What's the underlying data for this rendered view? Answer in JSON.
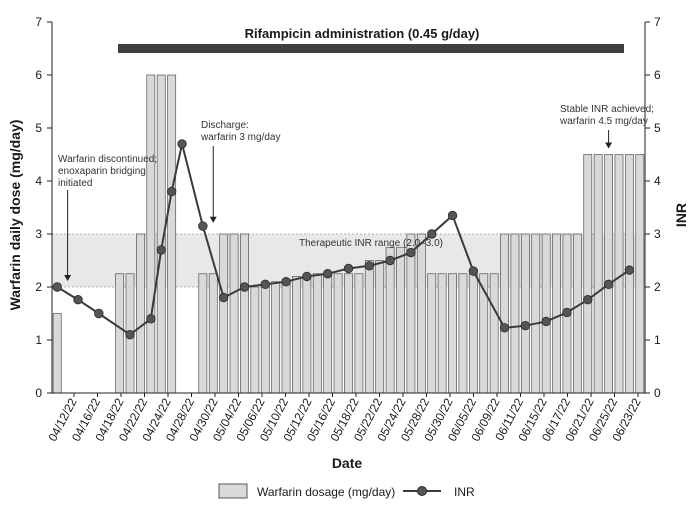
{
  "chart_data": {
    "type": "bar+line",
    "banner": "Rifampicin administration (0.45 g/day)",
    "xlabel": "Date",
    "ylabel_left": "Warfarin daily dose (mg/day)",
    "ylabel_right": "INR",
    "ylim": [
      0,
      7
    ],
    "yticks": [
      0,
      1,
      2,
      3,
      4,
      5,
      6,
      7
    ],
    "therapeutic_range": [
      2.0,
      3.0
    ],
    "therapeutic_label": "Therapeutic INR range (2.0–3.0)",
    "x_tick_labels": [
      "04/12/22",
      "04/16/22",
      "04/18/22",
      "04/22/22",
      "04/24/22",
      "04/28/22",
      "04/30/22",
      "05/04/22",
      "05/06/22",
      "05/10/22",
      "05/12/22",
      "05/16/22",
      "05/18/22",
      "05/22/22",
      "05/24/22",
      "05/28/22",
      "05/30/22",
      "06/05/22",
      "06/09/22",
      "06/11/22",
      "06/15/22",
      "06/17/22",
      "06/21/22",
      "06/25/22",
      "06/23/22"
    ],
    "series": [
      {
        "name": "Warfarin dosage (mg/day)",
        "type": "bar",
        "values": [
          1.5,
          0,
          0,
          0,
          0,
          0,
          2.25,
          2.25,
          3,
          6,
          6,
          6,
          0,
          0,
          2.25,
          2.25,
          3,
          3,
          3,
          2,
          2,
          2.1,
          2.1,
          2.2,
          2.2,
          2.25,
          2.25,
          2.25,
          2.25,
          2.25,
          2.5,
          2.5,
          2.75,
          2.75,
          3,
          3,
          2.25,
          2.25,
          2.25,
          2.25,
          2.25,
          2.25,
          2.25,
          3,
          3,
          3,
          3,
          3,
          3,
          3,
          3,
          4.5,
          4.5,
          4.5,
          4.5,
          4.5,
          4.5
        ]
      },
      {
        "name": "INR",
        "type": "line",
        "points": [
          [
            0,
            2.0
          ],
          [
            2,
            1.76
          ],
          [
            4,
            1.5
          ],
          [
            7,
            1.1
          ],
          [
            9,
            1.4
          ],
          [
            10,
            2.7
          ],
          [
            11,
            3.8
          ],
          [
            12,
            4.7
          ],
          [
            14,
            3.15
          ],
          [
            16,
            1.8
          ],
          [
            18,
            2.0
          ],
          [
            20,
            2.05
          ],
          [
            22,
            2.1
          ],
          [
            24,
            2.2
          ],
          [
            26,
            2.25
          ],
          [
            28,
            2.35
          ],
          [
            30,
            2.4
          ],
          [
            32,
            2.5
          ],
          [
            34,
            2.65
          ],
          [
            36,
            3.0
          ],
          [
            38,
            3.35
          ],
          [
            40,
            2.3
          ],
          [
            43,
            1.23
          ],
          [
            45,
            1.27
          ],
          [
            47,
            1.35
          ],
          [
            49,
            1.52
          ],
          [
            51,
            1.76
          ],
          [
            53,
            2.05
          ],
          [
            55,
            2.32
          ]
        ]
      }
    ],
    "annotations": [
      {
        "lines": [
          "Warfarin discontinued;",
          "enoxaparin bridging",
          "initiated"
        ],
        "arrow_to": [
          1,
          2.0
        ]
      },
      {
        "lines": [
          "Discharge:",
          "warfarin 3 mg/day"
        ],
        "arrow_to": [
          15,
          3.1
        ]
      },
      {
        "lines": [
          "Stable INR achieved;",
          "warfarin 4.5 mg/day"
        ],
        "arrow_to": [
          53,
          4.5
        ]
      }
    ],
    "colors": {
      "bar_fill": "#d9d9d9",
      "bar_stroke": "#555555",
      "line": "#3a3a3a",
      "marker": "#555555",
      "band": "#e8e8e8",
      "banner_bar": "#3f3f3f"
    }
  }
}
